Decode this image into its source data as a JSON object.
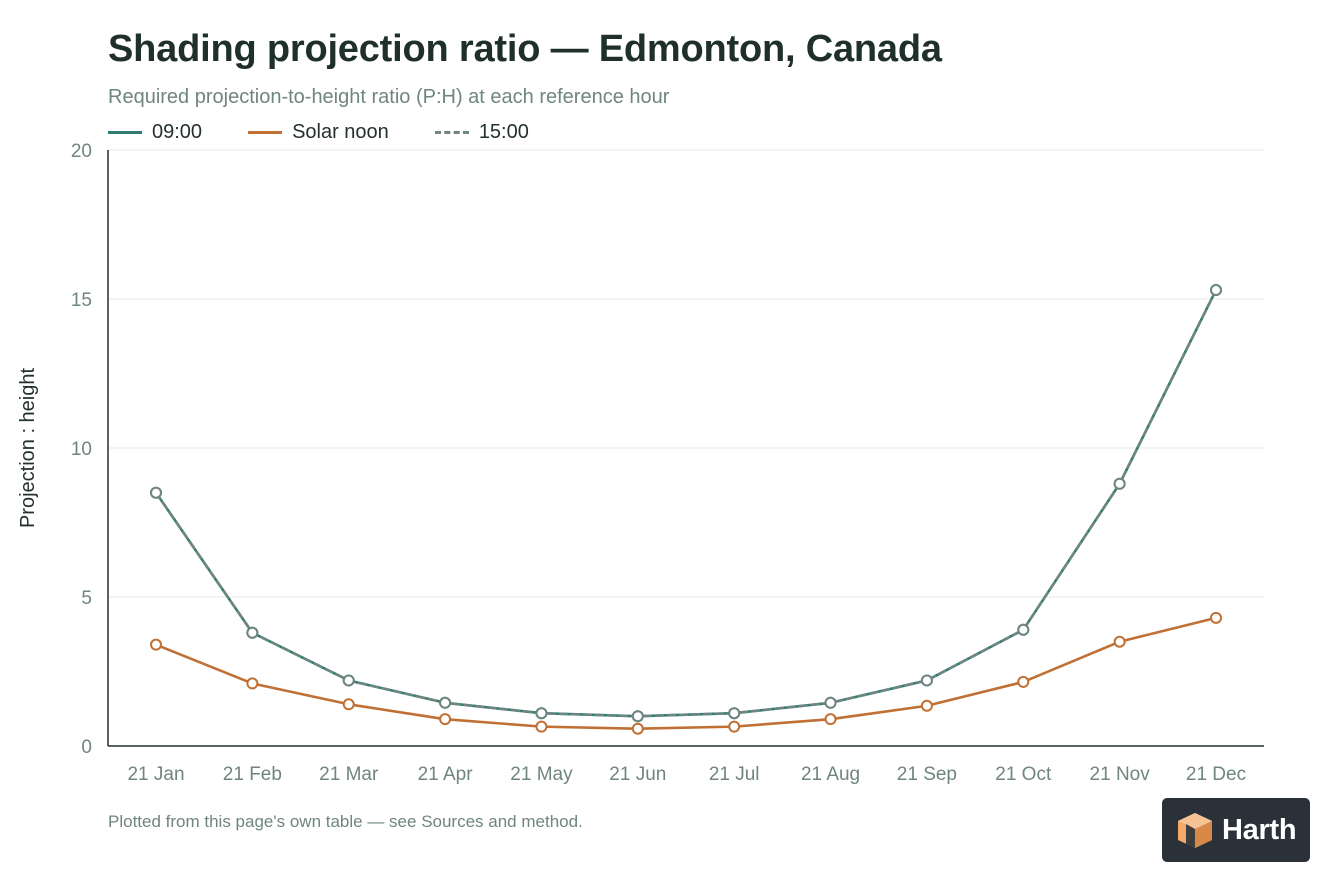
{
  "header": {
    "title": "Shading projection ratio — Edmonton, Canada",
    "subtitle": "Required projection-to-height ratio (P:H) at each reference hour"
  },
  "legend": [
    {
      "label": "09:00",
      "color": "#2e7d73",
      "style": "solid"
    },
    {
      "label": "Solar noon",
      "color": "#c07034",
      "style": "solid"
    },
    {
      "label": "15:00",
      "color": "#6f8580",
      "style": "dashed"
    }
  ],
  "footnote": "Plotted from this page's own table — see Sources and method.",
  "logo": {
    "text": "Harth",
    "icon": "box-logo-icon",
    "accent": "#f2a96a"
  },
  "chart_data": {
    "type": "line",
    "title": "Shading projection ratio — Edmonton, Canada",
    "subtitle": "Required projection-to-height ratio (P:H) at each reference hour",
    "xlabel": "",
    "ylabel": "Projection : height",
    "ylim": [
      0,
      20
    ],
    "yticks": [
      "0",
      "5",
      "10",
      "15",
      "20"
    ],
    "grid": true,
    "legend_position": "top-left",
    "categories": [
      "21 Jan",
      "21 Feb",
      "21 Mar",
      "21 Apr",
      "21 May",
      "21 Jun",
      "21 Jul",
      "21 Aug",
      "21 Sep",
      "21 Oct",
      "21 Nov",
      "21 Dec"
    ],
    "series": [
      {
        "name": "09:00",
        "color": "#2e7d73",
        "dash": false,
        "values": [
          8.5,
          3.8,
          2.2,
          1.45,
          1.1,
          1.0,
          1.1,
          1.45,
          2.2,
          3.9,
          8.8,
          15.3
        ]
      },
      {
        "name": "Solar noon",
        "color": "#c07034",
        "dash": false,
        "values": [
          3.4,
          2.1,
          1.4,
          0.9,
          0.65,
          0.58,
          0.65,
          0.9,
          1.35,
          2.15,
          3.5,
          4.3
        ]
      },
      {
        "name": "15:00",
        "color": "#6f8580",
        "dash": true,
        "values": [
          8.5,
          3.8,
          2.2,
          1.45,
          1.1,
          1.0,
          1.1,
          1.45,
          2.2,
          3.9,
          8.8,
          15.3
        ]
      }
    ]
  }
}
